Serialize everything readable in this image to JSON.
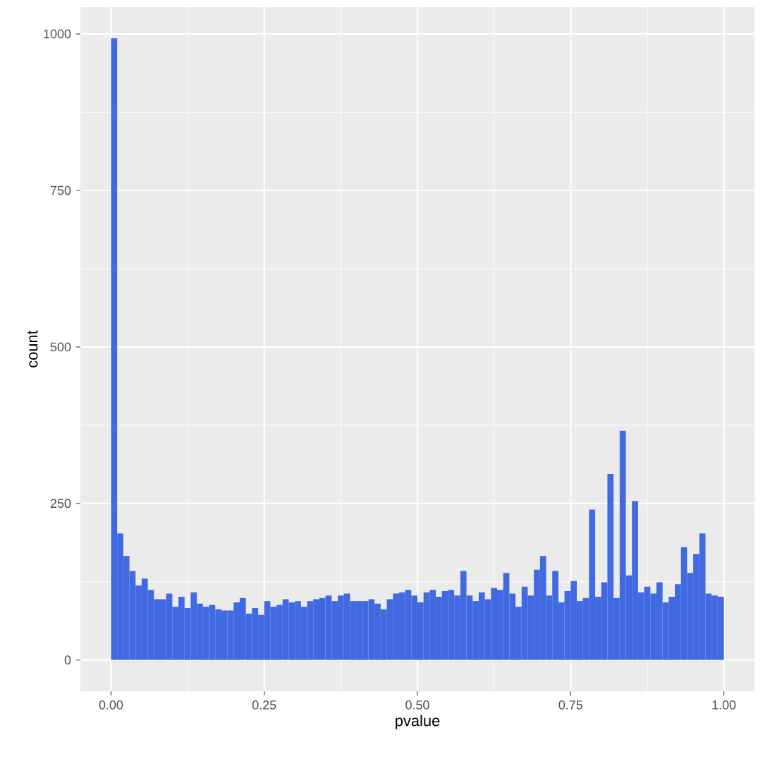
{
  "chart_data": {
    "type": "histogram",
    "xlabel": "pvalue",
    "ylabel": "count",
    "color": "#4169e1",
    "bins": [
      0,
      0.01,
      0.02,
      0.03,
      0.04,
      0.05,
      0.06,
      0.07,
      0.08,
      0.09,
      0.1,
      0.11,
      0.12,
      0.13,
      0.14,
      0.15,
      0.16,
      0.17,
      0.18,
      0.19,
      0.2,
      0.21,
      0.22,
      0.23,
      0.24,
      0.25,
      0.26,
      0.27,
      0.28,
      0.29,
      0.3,
      0.31,
      0.32,
      0.33,
      0.34,
      0.35,
      0.36,
      0.37,
      0.38,
      0.39,
      0.4,
      0.41,
      0.42,
      0.43,
      0.44,
      0.45,
      0.46,
      0.47,
      0.48,
      0.49,
      0.5,
      0.51,
      0.52,
      0.53,
      0.54,
      0.55,
      0.56,
      0.57,
      0.58,
      0.59,
      0.6,
      0.61,
      0.62,
      0.63,
      0.64,
      0.65,
      0.66,
      0.67,
      0.68,
      0.69,
      0.7,
      0.71,
      0.72,
      0.73,
      0.74,
      0.75,
      0.76,
      0.77,
      0.78,
      0.79,
      0.8,
      0.81,
      0.82,
      0.83,
      0.84,
      0.85,
      0.86,
      0.87,
      0.88,
      0.89,
      0.9,
      0.91,
      0.92,
      0.93,
      0.94,
      0.95,
      0.96,
      0.97,
      0.98,
      0.99,
      1
    ],
    "values": [
      993,
      202,
      166,
      142,
      119,
      130,
      112,
      97,
      97,
      106,
      85,
      101,
      83,
      108,
      90,
      85,
      88,
      81,
      79,
      79,
      92,
      99,
      74,
      83,
      72,
      94,
      85,
      88,
      97,
      92,
      94,
      85,
      94,
      97,
      99,
      103,
      94,
      103,
      106,
      94,
      94,
      94,
      97,
      90,
      81,
      97,
      106,
      108,
      112,
      103,
      92,
      108,
      112,
      101,
      110,
      112,
      103,
      142,
      103,
      94,
      108,
      97,
      115,
      112,
      139,
      106,
      85,
      117,
      103,
      144,
      166,
      103,
      142,
      92,
      110,
      126,
      94,
      99,
      240,
      101,
      124,
      297,
      99,
      366,
      135,
      254,
      108,
      117,
      106,
      124,
      92,
      101,
      121,
      180,
      139,
      169,
      202,
      106,
      103,
      101
    ],
    "xlim": [
      -0.05,
      1.05
    ],
    "ylim": [
      -50,
      1043
    ],
    "xticks": [
      {
        "value": 0,
        "label": "0.00"
      },
      {
        "value": 0.25,
        "label": "0.25"
      },
      {
        "value": 0.5,
        "label": "0.50"
      },
      {
        "value": 0.75,
        "label": "0.75"
      },
      {
        "value": 1,
        "label": "1.00"
      }
    ],
    "yticks": [
      0,
      250,
      500,
      750,
      1000
    ],
    "grid": true
  }
}
